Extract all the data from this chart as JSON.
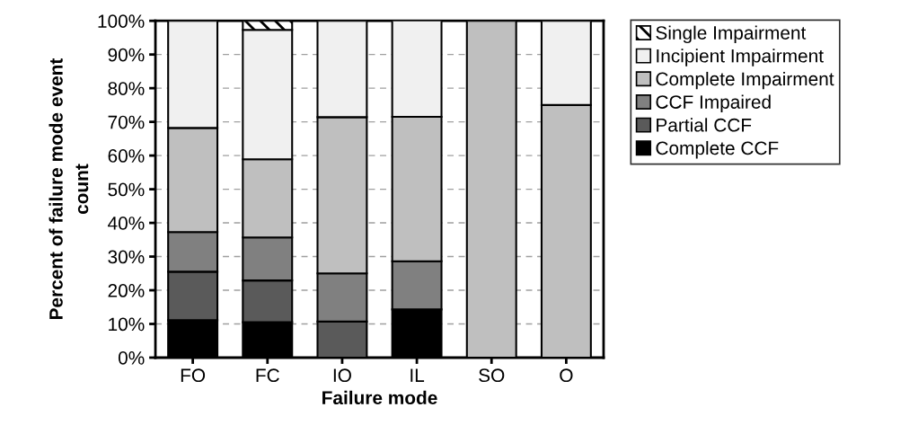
{
  "chart_data": {
    "type": "bar",
    "stacked": true,
    "xlabel": "Failure mode",
    "ylabel": "Percent of failure mode event\ncount",
    "categories": [
      "FO",
      "FC",
      "IO",
      "IL",
      "SO",
      "O"
    ],
    "series": [
      {
        "name": "Complete CCF",
        "color": "#000000",
        "values": [
          11.1,
          10.5,
          0,
          14.3,
          0,
          0
        ]
      },
      {
        "name": "Partial CCF",
        "color": "#5a5a5a",
        "values": [
          14.4,
          12.4,
          10.7,
          0,
          0,
          0
        ]
      },
      {
        "name": "CCF Impaired",
        "color": "#808080",
        "values": [
          11.8,
          12.8,
          14.3,
          14.3,
          0,
          0
        ]
      },
      {
        "name": "Complete Impairment",
        "color": "#bfbfbf",
        "values": [
          30.9,
          23.2,
          46.4,
          42.9,
          100,
          75
        ]
      },
      {
        "name": "Incipient Impairment",
        "color": "#f0f0f0",
        "values": [
          31.8,
          38.4,
          28.6,
          28.6,
          0,
          25
        ]
      },
      {
        "name": "Single Impairment",
        "color": "#ffffff",
        "values": [
          0,
          2.7,
          0,
          0,
          0,
          0
        ]
      }
    ],
    "ylim": [
      0,
      100
    ],
    "yticks": [
      {
        "value": 0,
        "label": "0%"
      },
      {
        "value": 10,
        "label": "10%"
      },
      {
        "value": 20,
        "label": "20%"
      },
      {
        "value": 30,
        "label": "30%"
      },
      {
        "value": 40,
        "label": "40%"
      },
      {
        "value": 50,
        "label": "50%"
      },
      {
        "value": 60,
        "label": "60%"
      },
      {
        "value": 70,
        "label": "70%"
      },
      {
        "value": 80,
        "label": "80%"
      },
      {
        "value": 90,
        "label": "90%"
      },
      {
        "value": 100,
        "label": "100%"
      }
    ],
    "grid": "y",
    "legend": "right"
  }
}
